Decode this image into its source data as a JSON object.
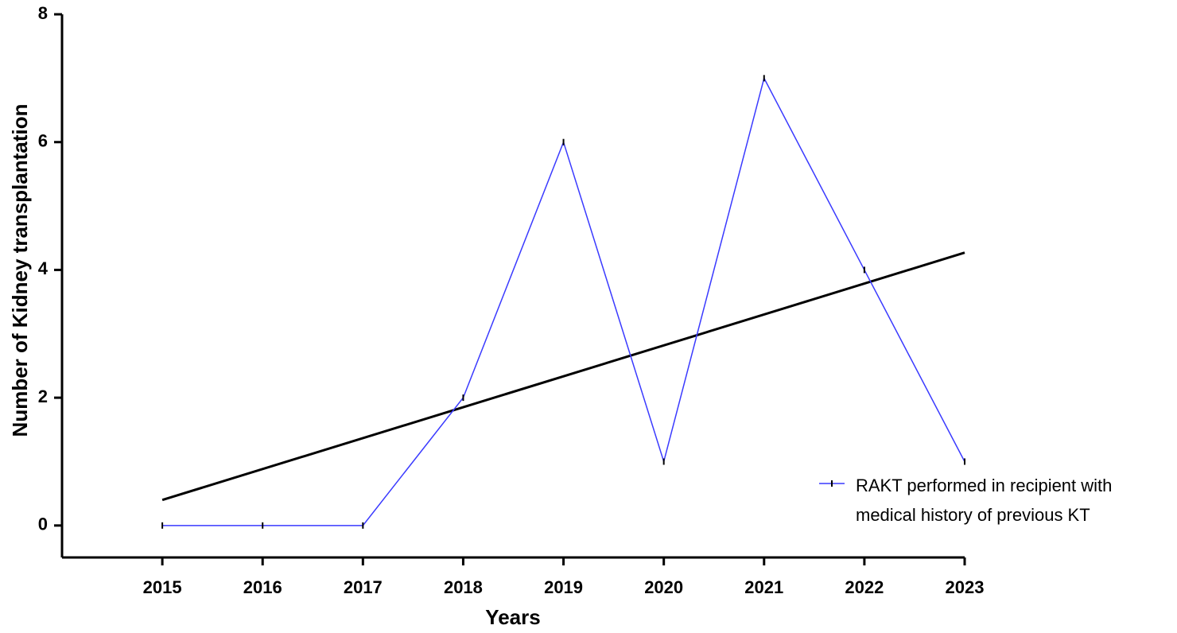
{
  "chart_data": {
    "type": "line",
    "xlabel": "Years",
    "ylabel": "Number of Kidney transplantation",
    "x": [
      2015,
      2016,
      2017,
      2018,
      2019,
      2020,
      2021,
      2022,
      2023
    ],
    "series": [
      {
        "name": "RAKT performed in recipient with medical history of previous KT",
        "color": "#3a3aff",
        "values": [
          0,
          0,
          0,
          2,
          6,
          1,
          7,
          4,
          1
        ]
      }
    ],
    "trendline": {
      "x": [
        2015,
        2023
      ],
      "values": [
        0.4,
        4.27
      ],
      "color": "#000000"
    },
    "xlim": [
      2014,
      2023
    ],
    "ylim": [
      -0.5,
      8
    ],
    "xticks": [
      2015,
      2016,
      2017,
      2018,
      2019,
      2020,
      2021,
      2022,
      2023
    ],
    "yticks": [
      0,
      2,
      4,
      6,
      8
    ],
    "legend": "lower right"
  }
}
